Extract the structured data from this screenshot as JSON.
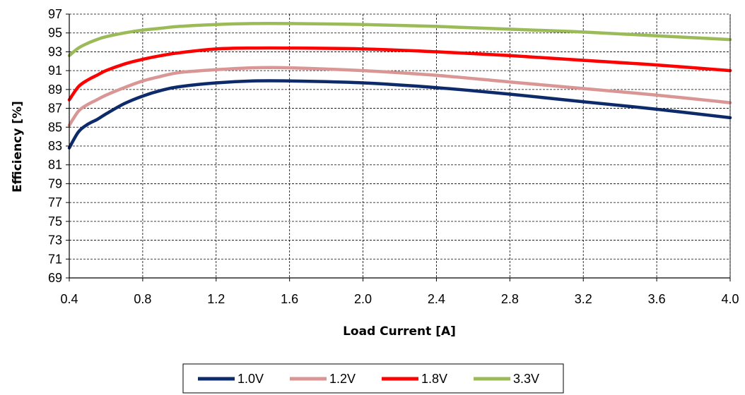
{
  "chart_data": {
    "type": "line",
    "title": "",
    "xlabel": "Load Current [A]",
    "ylabel": "Efficiency [%]",
    "xlim": [
      0.4,
      4.0
    ],
    "ylim": [
      69,
      97
    ],
    "xticks": [
      0.4,
      0.8,
      1.2,
      1.6,
      2.0,
      2.4,
      2.8,
      3.2,
      3.6,
      4.0
    ],
    "xtick_labels": [
      "0.4",
      "0.8",
      "1.2",
      "1.6",
      "2.0",
      "2.4",
      "2.8",
      "3.2",
      "3.6",
      "4.0"
    ],
    "yticks": [
      69,
      71,
      73,
      75,
      77,
      79,
      81,
      83,
      85,
      87,
      89,
      91,
      93,
      95,
      97
    ],
    "ytick_labels": [
      "69",
      "71",
      "73",
      "75",
      "77",
      "79",
      "81",
      "83",
      "85",
      "87",
      "89",
      "91",
      "93",
      "95",
      "97"
    ],
    "grid": true,
    "legend_position": "bottom-center",
    "x": [
      0.4,
      0.45,
      0.5,
      0.55,
      0.6,
      0.7,
      0.8,
      0.9,
      1.0,
      1.2,
      1.4,
      1.6,
      2.0,
      2.4,
      2.8,
      3.2,
      3.6,
      4.0
    ],
    "series": [
      {
        "name": "1.0V",
        "color": "#0d2b6b",
        "values": [
          82.8,
          84.5,
          85.3,
          85.8,
          86.4,
          87.5,
          88.3,
          88.9,
          89.3,
          89.7,
          89.9,
          89.9,
          89.7,
          89.2,
          88.5,
          87.7,
          86.9,
          86.0
        ]
      },
      {
        "name": "1.2V",
        "color": "#d99694",
        "values": [
          85.2,
          86.7,
          87.4,
          87.9,
          88.4,
          89.2,
          89.9,
          90.4,
          90.8,
          91.1,
          91.3,
          91.3,
          91.0,
          90.5,
          89.8,
          89.1,
          88.4,
          87.6
        ]
      },
      {
        "name": "1.8V",
        "color": "#ff0000",
        "values": [
          87.9,
          89.3,
          90.0,
          90.5,
          91.0,
          91.7,
          92.2,
          92.6,
          92.9,
          93.3,
          93.4,
          93.4,
          93.3,
          93.0,
          92.6,
          92.1,
          91.6,
          91.0
        ]
      },
      {
        "name": "3.3V",
        "color": "#9bbb59",
        "values": [
          92.6,
          93.4,
          93.9,
          94.3,
          94.6,
          95.0,
          95.3,
          95.5,
          95.7,
          95.9,
          96.0,
          96.0,
          95.9,
          95.7,
          95.4,
          95.1,
          94.7,
          94.3
        ]
      }
    ]
  }
}
